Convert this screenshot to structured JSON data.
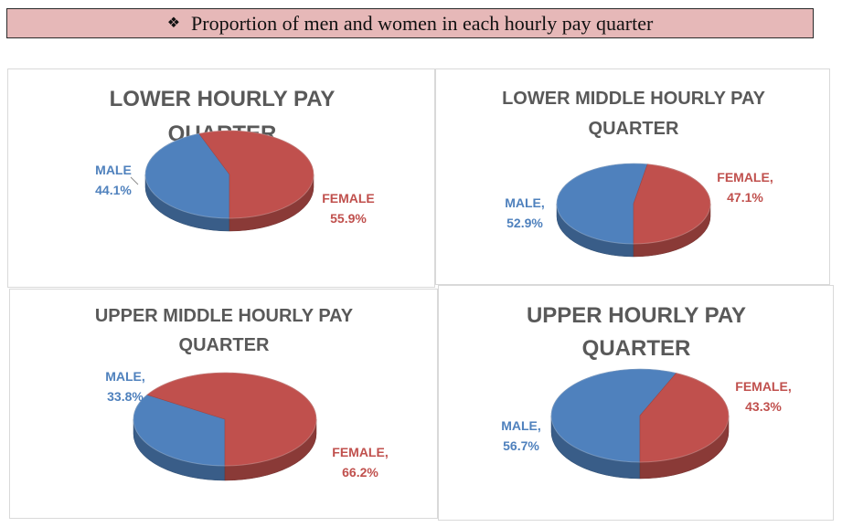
{
  "header": {
    "bullet": "❖",
    "title": "Proportion of men and women in each hourly pay quarter"
  },
  "colors": {
    "male": "#4f81bd",
    "female": "#c0504d"
  },
  "chart_data": [
    {
      "type": "pie",
      "title_lines": [
        "LOWER HOURLY PAY",
        "QUARTER"
      ],
      "slices": [
        {
          "label": "MALE",
          "value": 44.1,
          "display": "44.1%",
          "color": "#4f81bd"
        },
        {
          "label": "FEMALE",
          "value": 55.9,
          "display": "55.9%",
          "color": "#c0504d"
        }
      ]
    },
    {
      "type": "pie",
      "title_lines": [
        "LOWER MIDDLE HOURLY PAY",
        "QUARTER"
      ],
      "slices": [
        {
          "label": "MALE,",
          "value": 52.9,
          "display": "52.9%",
          "color": "#4f81bd"
        },
        {
          "label": "FEMALE,",
          "value": 47.1,
          "display": "47.1%",
          "color": "#c0504d"
        }
      ]
    },
    {
      "type": "pie",
      "title_lines": [
        "UPPER MIDDLE HOURLY PAY",
        "QUARTER"
      ],
      "slices": [
        {
          "label": "MALE,",
          "value": 33.8,
          "display": "33.8%",
          "color": "#4f81bd"
        },
        {
          "label": "FEMALE,",
          "value": 66.2,
          "display": "66.2%",
          "color": "#c0504d"
        }
      ]
    },
    {
      "type": "pie",
      "title_lines": [
        "UPPER HOURLY PAY",
        "QUARTER"
      ],
      "slices": [
        {
          "label": "MALE,",
          "value": 56.7,
          "display": "56.7%",
          "color": "#4f81bd"
        },
        {
          "label": "FEMALE,",
          "value": 43.3,
          "display": "43.3%",
          "color": "#c0504d"
        }
      ]
    }
  ]
}
